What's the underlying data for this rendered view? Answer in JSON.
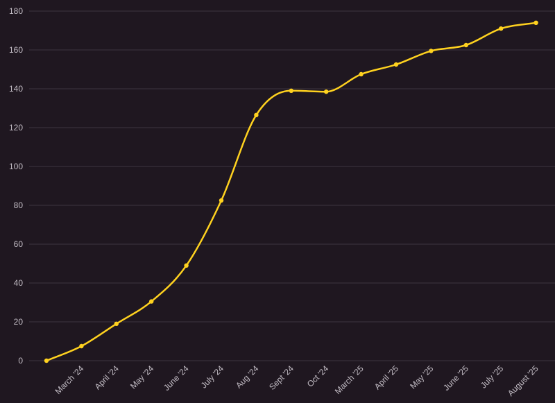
{
  "theme": {
    "background": "#1f1720",
    "grid": "#3d3640",
    "axis_text": "#c2bcc4",
    "line": "#ffd21f"
  },
  "chart_data": {
    "type": "line",
    "title": "",
    "xlabel": "",
    "ylabel": "",
    "categories": [
      "",
      "March '24",
      "April '24",
      "May '24",
      "June '24",
      "July '24",
      "Aug '24",
      "Sept '24",
      "Oct '24",
      "March '25",
      "April '25",
      "May '25",
      "June '25",
      "July '25",
      "August '25"
    ],
    "series": [
      {
        "values": [
          0,
          7.5,
          19,
          30.5,
          49,
          82.5,
          126.5,
          139,
          138.5,
          147.5,
          152.5,
          159.5,
          162.5,
          171,
          174
        ]
      }
    ],
    "ylim": [
      0,
      180
    ],
    "yticks": [
      0,
      20,
      40,
      60,
      80,
      100,
      120,
      140,
      160,
      180
    ],
    "grid": true,
    "legend": "none"
  }
}
